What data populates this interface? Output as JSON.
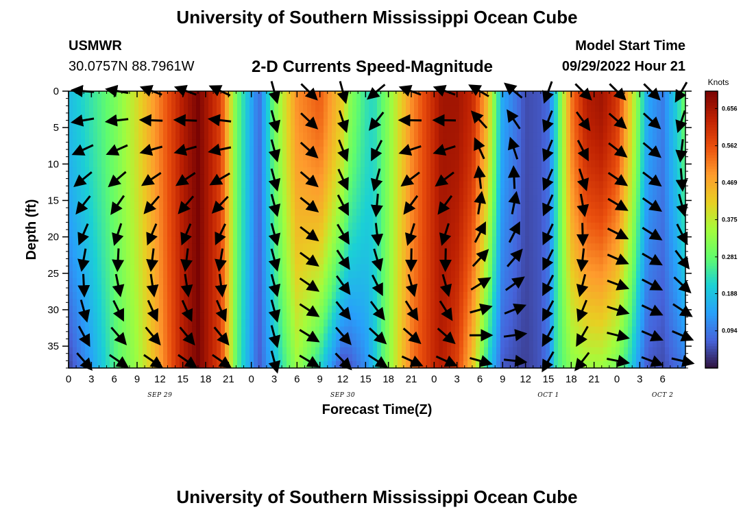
{
  "header": {
    "title": "University of Southern Mississippi Ocean Cube",
    "station": "USMWR",
    "coords": "30.0757N  88.7961W",
    "plot_title": "2-D Currents Speed-Magnitude",
    "start_label": "Model Start Time",
    "start_value": "09/29/2022 Hour 21"
  },
  "footer": {
    "title": "University of Southern Mississippi Ocean Cube"
  },
  "chart_data": {
    "type": "heatmap",
    "title": "2-D Currents Speed-Magnitude",
    "xlabel": "Forecast Time(Z)",
    "ylabel": "Depth (ft)",
    "x_range_hours": [
      0,
      81
    ],
    "y_range_ft": [
      0,
      38
    ],
    "x_tick_labels": [
      "0",
      "3",
      "6",
      "9",
      "12",
      "15",
      "18",
      "21",
      "0",
      "3",
      "6",
      "9",
      "12",
      "15",
      "18",
      "21",
      "0",
      "3",
      "6",
      "9",
      "12",
      "15",
      "18",
      "21",
      "0",
      "3",
      "6"
    ],
    "x_date_labels": [
      {
        "label": "SEP 29",
        "hour": 12
      },
      {
        "label": "SEP 30",
        "hour": 36
      },
      {
        "label": "OCT 1",
        "hour": 63
      },
      {
        "label": "OCT 2",
        "hour": 78
      }
    ],
    "y_ticks": [
      0,
      5,
      10,
      15,
      20,
      25,
      30,
      35
    ],
    "y_tick_labels": [
      "0",
      "5",
      "10",
      "15",
      "20",
      "25",
      "30",
      "35"
    ],
    "colorbar": {
      "unit": "Knots",
      "min": 0.0,
      "max": 0.7,
      "ticks": [
        0.094,
        0.188,
        0.281,
        0.375,
        0.469,
        0.562,
        0.656
      ],
      "tick_labels": [
        "0.094",
        "0.188",
        "0.281",
        "0.375",
        "0.469",
        "0.562",
        "0.656"
      ]
    },
    "speed_profile": {
      "description": "surface speed (knots) vs forecast hour; speed decreases toward the bottom in places",
      "hours": [
        0,
        3,
        6,
        9,
        12,
        15,
        17,
        20,
        22,
        25,
        27,
        30,
        33,
        36,
        37,
        39,
        40,
        42,
        45,
        48,
        49,
        51,
        53,
        55,
        57,
        60,
        62,
        63,
        64,
        66,
        68,
        70,
        72,
        74,
        75,
        76,
        78,
        80,
        81
      ],
      "surface": [
        0.18,
        0.24,
        0.3,
        0.4,
        0.52,
        0.64,
        0.7,
        0.58,
        0.3,
        0.08,
        0.3,
        0.5,
        0.55,
        0.42,
        0.32,
        0.24,
        0.22,
        0.32,
        0.5,
        0.62,
        0.66,
        0.66,
        0.62,
        0.45,
        0.15,
        0.05,
        0.06,
        0.08,
        0.22,
        0.52,
        0.64,
        0.66,
        0.6,
        0.4,
        0.28,
        0.15,
        0.1,
        0.22,
        0.3
      ],
      "bottom": [
        0.04,
        0.14,
        0.26,
        0.34,
        0.48,
        0.64,
        0.7,
        0.58,
        0.28,
        0.06,
        0.18,
        0.34,
        0.22,
        0.04,
        0.06,
        0.12,
        0.18,
        0.32,
        0.52,
        0.62,
        0.64,
        0.58,
        0.44,
        0.22,
        0.06,
        0.04,
        0.06,
        0.1,
        0.24,
        0.32,
        0.34,
        0.34,
        0.3,
        0.2,
        0.12,
        0.06,
        0.05,
        0.08,
        0.1
      ]
    },
    "vectors": {
      "hours": [
        2,
        6.5,
        11,
        15.5,
        20,
        27,
        31.5,
        36,
        40.5,
        45,
        49.5,
        54,
        58.5,
        63,
        67.5,
        72,
        76.5,
        80.5
      ],
      "depths": [
        0,
        4,
        8,
        12,
        15.5,
        19.5,
        23,
        26.5,
        30,
        33.5,
        37
      ],
      "direction_deg_surface": [
        275,
        280,
        290,
        290,
        295,
        165,
        135,
        165,
        230,
        290,
        290,
        300,
        310,
        200,
        135,
        135,
        135,
        210
      ],
      "direction_deg_bottom": [
        135,
        120,
        120,
        120,
        120,
        165,
        120,
        135,
        120,
        110,
        110,
        110,
        100,
        210,
        220,
        100,
        110,
        100
      ]
    }
  }
}
